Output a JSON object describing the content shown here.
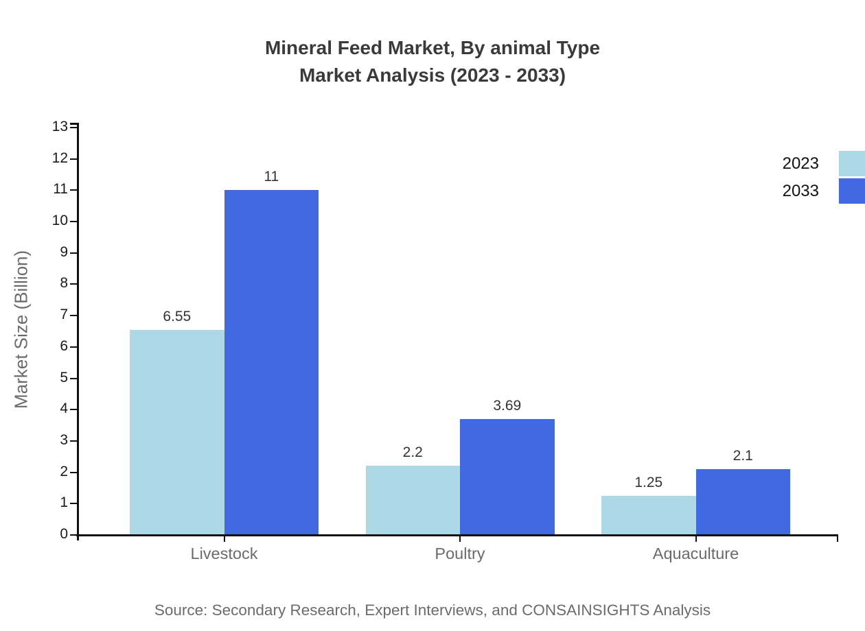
{
  "title": {
    "line1": "Mineral Feed Market, By animal Type",
    "line2": "Market Analysis (2023 - 2033)"
  },
  "source": "Source: Secondary Research, Expert Interviews, and CONSAINSIGHTS Analysis",
  "colors": {
    "series_2023": "#ADD8E6",
    "series_2033": "#4169E1",
    "axis": "#111111",
    "title_text": "#3a3a3a",
    "tick_label_text": "#1a1a1a",
    "data_label_text": "#333333",
    "muted_text": "#6b6b6b"
  },
  "chart_data": {
    "type": "bar",
    "title": "Mineral Feed Market, By animal Type Market Analysis (2023 - 2033)",
    "categories": [
      "Livestock",
      "Poultry",
      "Aquaculture"
    ],
    "series": [
      {
        "name": "2023",
        "color": "#ADD8E6",
        "values": [
          6.55,
          2.2,
          1.25
        ]
      },
      {
        "name": "2033",
        "color": "#4169E1",
        "values": [
          11,
          3.69,
          2.1
        ]
      }
    ],
    "xlabel": "",
    "ylabel": "Market Size (Billion)",
    "ylim": [
      0,
      13
    ],
    "y_ticks": [
      0,
      1,
      2,
      3,
      4,
      5,
      6,
      7,
      8,
      9,
      10,
      11,
      12,
      13
    ],
    "grid": false,
    "data_labels": true,
    "legend_position": "top-right"
  }
}
